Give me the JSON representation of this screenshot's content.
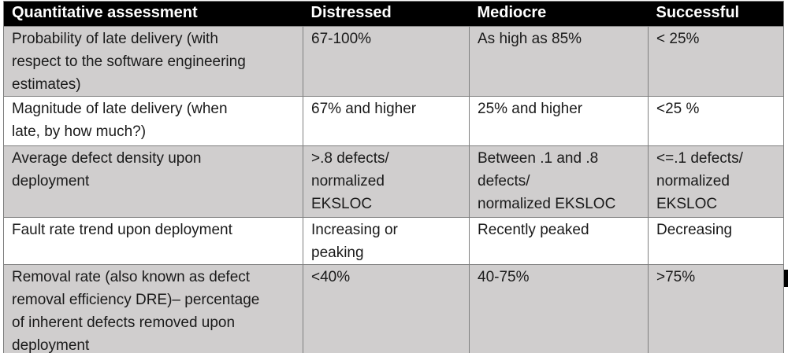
{
  "table": {
    "headers": [
      "Quantitative assessment",
      "Distressed",
      "Mediocre",
      "Successful"
    ],
    "rows": [
      {
        "cells": [
          "Probability of late delivery (with\nrespect to the software engineering\nestimates)",
          "67-100%",
          "As high as 85%",
          "< 25%"
        ]
      },
      {
        "cells": [
          "Magnitude of late delivery (when\nlate, by how much?)",
          "67% and higher",
          "25% and higher",
          "<25 %"
        ]
      },
      {
        "cells": [
          "Average defect density upon\ndeployment",
          ">.8 defects/\nnormalized\nEKSLOC",
          "Between .1 and .8\ndefects/\nnormalized EKSLOC",
          "<=.1 defects/\nnormalized\nEKSLOC"
        ]
      },
      {
        "cells": [
          "Fault rate trend upon deployment",
          "Increasing or\npeaking",
          "Recently peaked",
          "Decreasing"
        ]
      },
      {
        "cells": [
          "Removal rate (also known as defect\nremoval efficiency DRE)– percentage\nof inherent defects removed upon\ndeployment",
          "<40%",
          "40-75%",
          ">75%"
        ]
      }
    ]
  },
  "colors": {
    "header_bg": "#000000",
    "header_text": "#ffffff",
    "row_shaded": "#d0cece",
    "row_plain": "#ffffff",
    "cell_border": "#7f7f7f"
  }
}
